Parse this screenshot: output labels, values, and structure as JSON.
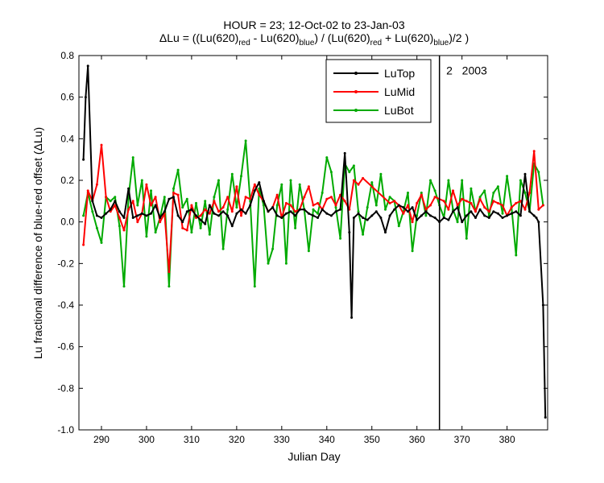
{
  "chart_data": {
    "type": "line",
    "title_line1": "HOUR = 23; 12-Oct-02 to 23-Jan-03",
    "title_line2": {
      "p1": "ΔLu = ((Lu(620)",
      "s1": "red",
      "p2": " - Lu(620)",
      "s2": "blue",
      "p3": ") / (Lu(620)",
      "s3": "red",
      "p4": " + Lu(620)",
      "s4": "blue",
      "p5": ")/2  )"
    },
    "xlabel": "Julian Day",
    "ylabel": "Lu fractional difference of blue-red offset (ΔLu)",
    "xlim": [
      285,
      389
    ],
    "ylim": [
      -1.0,
      0.8
    ],
    "xticks": [
      "290",
      "300",
      "310",
      "320",
      "330",
      "340",
      "350",
      "360",
      "370",
      "380"
    ],
    "yticks": [
      "-1.0",
      "-0.8",
      "-0.6",
      "-0.4",
      "-0.2",
      "0.0",
      "0.2",
      "0.4",
      "0.6",
      "0.8"
    ],
    "grid": false,
    "legend_position": "top-right",
    "annotations": [
      {
        "text": "2",
        "x": 366.5,
        "y": 0.71
      },
      {
        "text": "2003",
        "x": 370,
        "y": 0.71
      }
    ],
    "vline_x": 365,
    "series": [
      {
        "name": "LuTop",
        "color": "#000000",
        "x": [
          286,
          286.5,
          287,
          288,
          289,
          290,
          291,
          292,
          293,
          294,
          295,
          296,
          297,
          298,
          299,
          300,
          301,
          302,
          303,
          304,
          305,
          306,
          307,
          308,
          309,
          310,
          311,
          312,
          313,
          314,
          315,
          316,
          317,
          318,
          319,
          320,
          321,
          322,
          323,
          324,
          325,
          326,
          327,
          328,
          329,
          330,
          331,
          332,
          333,
          334,
          335,
          336,
          337,
          338,
          339,
          340,
          341,
          342,
          343,
          344,
          345,
          345.5,
          346,
          347,
          348,
          349,
          350,
          351,
          352,
          353,
          354,
          355,
          356,
          357,
          358,
          359,
          360,
          361,
          362,
          363,
          364,
          365,
          366,
          367,
          368,
          369,
          370,
          371,
          372,
          373,
          374,
          375,
          376,
          377,
          378,
          379,
          380,
          381,
          382,
          383,
          384,
          385,
          386,
          386.5,
          387,
          388,
          388.5
        ],
        "y": [
          0.3,
          0.6,
          0.75,
          0.1,
          0.03,
          0.02,
          0.04,
          0.06,
          0.1,
          0.05,
          0.02,
          0.16,
          0.02,
          0.03,
          0.04,
          0.03,
          0.04,
          0.08,
          0.02,
          0.05,
          0.11,
          0.12,
          0.03,
          0.0,
          0.05,
          0.06,
          0.03,
          0.01,
          -0.01,
          0.08,
          0.04,
          0.03,
          0.05,
          0.03,
          -0.02,
          0.04,
          0.06,
          0.04,
          0.08,
          0.15,
          0.19,
          0.1,
          0.05,
          0.07,
          0.03,
          0.02,
          0.04,
          0.05,
          0.03,
          0.06,
          0.06,
          0.04,
          0.03,
          0.02,
          0.06,
          0.04,
          0.03,
          0.05,
          0.06,
          0.33,
          -0.05,
          -0.46,
          0.02,
          0.04,
          0.02,
          0.01,
          0.03,
          0.05,
          0.02,
          -0.05,
          0.03,
          0.06,
          0.08,
          0.07,
          0.05,
          0.07,
          0.01,
          0.03,
          0.05,
          0.03,
          0.02,
          0.0,
          0.02,
          0.01,
          0.05,
          0.07,
          0.0,
          0.03,
          0.05,
          0.02,
          0.06,
          0.03,
          0.02,
          0.05,
          0.04,
          0.02,
          0.03,
          0.04,
          0.05,
          0.03,
          0.23,
          0.05,
          0.03,
          0.02,
          0.0,
          -0.4,
          -0.94
        ]
      },
      {
        "name": "LuMid",
        "color": "#ff0000",
        "x": [
          286,
          287,
          288,
          289,
          290,
          291,
          292,
          293,
          294,
          295,
          296,
          297,
          298,
          299,
          300,
          301,
          302,
          303,
          304,
          305,
          306,
          307,
          308,
          309,
          310,
          311,
          312,
          313,
          314,
          315,
          316,
          317,
          318,
          319,
          320,
          321,
          322,
          323,
          324,
          325,
          326,
          327,
          328,
          329,
          330,
          331,
          332,
          333,
          334,
          335,
          336,
          337,
          338,
          339,
          340,
          341,
          342,
          343,
          344,
          345,
          346,
          347,
          348,
          354,
          355,
          356,
          357,
          358,
          359,
          360,
          361,
          362,
          363,
          364,
          366,
          367,
          368,
          369,
          370,
          371,
          372,
          373,
          374,
          375,
          376,
          377,
          378,
          379,
          380,
          381,
          382,
          383,
          384,
          385,
          386,
          387,
          388
        ],
        "y": [
          -0.11,
          0.15,
          0.1,
          0.18,
          0.37,
          0.12,
          0.05,
          0.08,
          0.02,
          -0.04,
          0.06,
          0.1,
          0.0,
          0.04,
          0.18,
          0.08,
          0.12,
          0.0,
          0.04,
          -0.24,
          0.14,
          0.13,
          -0.03,
          -0.04,
          0.08,
          0.02,
          0.03,
          0.06,
          0.04,
          0.1,
          0.05,
          0.07,
          0.12,
          0.05,
          0.17,
          0.03,
          0.12,
          0.11,
          0.18,
          0.13,
          0.1,
          0.05,
          0.07,
          0.13,
          0.02,
          0.09,
          0.08,
          0.05,
          0.06,
          0.12,
          0.17,
          0.08,
          0.09,
          0.06,
          0.11,
          0.12,
          0.08,
          0.13,
          0.1,
          0.06,
          0.2,
          0.18,
          0.21,
          0.09,
          0.1,
          0.08,
          0.04,
          0.08,
          0.0,
          0.09,
          0.13,
          0.06,
          0.08,
          0.12,
          0.1,
          0.06,
          0.15,
          0.08,
          0.11,
          0.1,
          0.09,
          0.05,
          0.11,
          0.07,
          0.05,
          0.1,
          0.09,
          0.08,
          0.03,
          0.07,
          0.09,
          0.1,
          0.06,
          0.14,
          0.34,
          0.06,
          0.08
        ]
      },
      {
        "name": "LuBot",
        "color": "#00aa00",
        "x": [
          286,
          287,
          288,
          289,
          290,
          291,
          292,
          293,
          294,
          295,
          296,
          297,
          298,
          299,
          300,
          301,
          302,
          303,
          304,
          305,
          306,
          307,
          308,
          309,
          310,
          311,
          312,
          313,
          314,
          315,
          316,
          317,
          318,
          319,
          320,
          321,
          322,
          323,
          324,
          325,
          326,
          327,
          328,
          329,
          330,
          331,
          332,
          333,
          334,
          335,
          336,
          337,
          338,
          339,
          340,
          341,
          342,
          343,
          344,
          345,
          346,
          347,
          348,
          349,
          350,
          351,
          352,
          353,
          354,
          355,
          356,
          357,
          358,
          359,
          360,
          361,
          362,
          363,
          364,
          365,
          366,
          367,
          368,
          369,
          370,
          371,
          372,
          373,
          374,
          375,
          376,
          377,
          378,
          379,
          380,
          381,
          382,
          383,
          384,
          385,
          386,
          387,
          388
        ],
        "y": [
          0.03,
          0.14,
          0.05,
          -0.03,
          -0.1,
          0.12,
          0.1,
          0.12,
          -0.02,
          -0.31,
          0.12,
          0.31,
          0.08,
          0.2,
          -0.07,
          0.15,
          -0.05,
          0.02,
          0.12,
          -0.31,
          0.16,
          0.25,
          0.07,
          0.11,
          -0.05,
          0.09,
          -0.03,
          0.1,
          -0.06,
          0.12,
          0.2,
          -0.13,
          0.06,
          0.23,
          0.07,
          0.22,
          0.39,
          0.1,
          -0.31,
          0.16,
          0.08,
          -0.2,
          -0.13,
          0.08,
          0.18,
          -0.2,
          0.2,
          -0.03,
          0.18,
          0.06,
          -0.14,
          0.06,
          0.04,
          0.14,
          0.31,
          0.24,
          0.07,
          -0.08,
          0.28,
          0.24,
          0.27,
          0.05,
          -0.06,
          0.07,
          0.19,
          0.08,
          0.23,
          0.06,
          0.12,
          0.1,
          -0.02,
          0.05,
          0.14,
          -0.14,
          0.03,
          0.14,
          0.03,
          0.2,
          0.15,
          0.08,
          0.02,
          0.2,
          0.06,
          0.0,
          0.2,
          -0.08,
          0.16,
          0.05,
          0.12,
          0.15,
          0.03,
          0.14,
          0.17,
          0.04,
          0.22,
          0.07,
          -0.16,
          0.2,
          0.14,
          0.05,
          0.28,
          0.24,
          0.08
        ]
      }
    ]
  }
}
